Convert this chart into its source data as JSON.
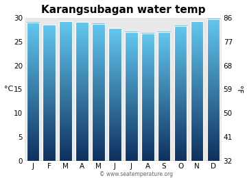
{
  "title": "Karangsubagan water temp",
  "months": [
    "J",
    "F",
    "M",
    "A",
    "M",
    "J",
    "J",
    "A",
    "S",
    "O",
    "N",
    "D"
  ],
  "values_c": [
    29.0,
    28.5,
    29.2,
    29.1,
    28.7,
    27.8,
    27.0,
    26.7,
    27.0,
    28.3,
    29.2,
    29.7
  ],
  "ylim_c": [
    0,
    30
  ],
  "yticks_c": [
    0,
    5,
    10,
    15,
    20,
    25,
    30
  ],
  "yticks_f": [
    32,
    41,
    50,
    59,
    68,
    77,
    86
  ],
  "ylabel_left": "°C",
  "ylabel_right": "°F",
  "bar_color_top": "#62c8f0",
  "bar_color_bottom": "#0e3060",
  "figure_bg": "#ffffff",
  "plot_bg_color": "#e8e8e8",
  "watermark": "© www.seatemperature.org",
  "title_fontsize": 11,
  "tick_fontsize": 7.5,
  "label_fontsize": 8,
  "bar_width": 0.78
}
